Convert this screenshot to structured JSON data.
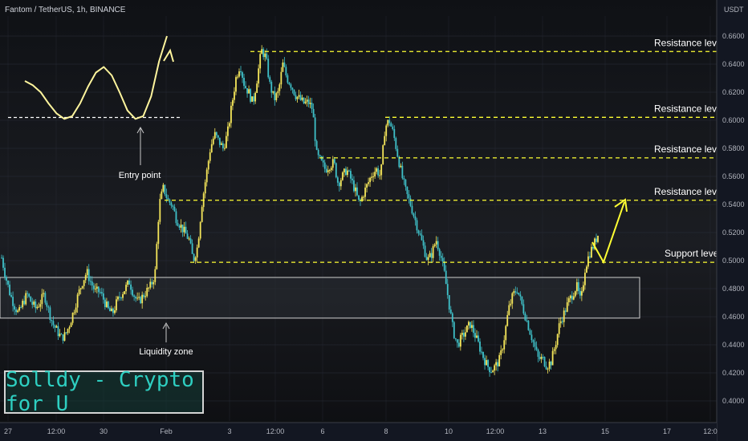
{
  "header": {
    "title": "Fantom / TetherUS, 1h, BINANCE",
    "currency": "USDT"
  },
  "brand": {
    "text": "Solldy - Crypto for U"
  },
  "colors": {
    "up": "#f5e65a",
    "down": "#3fc1c9",
    "dashed": "#ffff33",
    "badge": "#ffff00",
    "zone": "#2a2d33"
  },
  "chart_data": {
    "type": "candlestick",
    "pair": "FTM/USDT",
    "timeframe": "1h",
    "exchange": "BINANCE",
    "y_ticks": [
      "0.6600",
      "0.6400",
      "0.6200",
      "0.6000",
      "0.5800",
      "0.5600",
      "0.5400",
      "0.5200",
      "0.5000",
      "0.4800",
      "0.4600",
      "0.4400",
      "0.4200",
      "0.4000"
    ],
    "x_ticks": [
      "27",
      "12:00",
      "30",
      "Feb",
      "3",
      "12:00",
      "6",
      "8",
      "10",
      "12:00",
      "13",
      "15",
      "17",
      "12:0"
    ],
    "ylim": [
      0.393,
      0.671
    ],
    "levels": [
      {
        "label": "Resistance level",
        "value": "0.6490"
      },
      {
        "label": "Resistance level",
        "value": "0.6021"
      },
      {
        "label": "Resistance level",
        "value": "0.5732"
      },
      {
        "label": "Resistance level",
        "value": "0.5430"
      },
      {
        "label": "Support level",
        "value": "0.4988"
      }
    ],
    "current_price": "0.5185",
    "annotations": {
      "entry": "Entry point",
      "liquidity": "Liquidity zone",
      "liquidity_zone_range": [
        0.459,
        0.488
      ]
    },
    "price_path": [
      0.502,
      0.488,
      0.476,
      0.468,
      0.462,
      0.47,
      0.476,
      0.47,
      0.466,
      0.47,
      0.476,
      0.465,
      0.455,
      0.45,
      0.445,
      0.447,
      0.455,
      0.465,
      0.476,
      0.485,
      0.492,
      0.484,
      0.478,
      0.478,
      0.472,
      0.465,
      0.462,
      0.47,
      0.476,
      0.48,
      0.485,
      0.476,
      0.47,
      0.474,
      0.478,
      0.482,
      0.49,
      0.54,
      0.552,
      0.543,
      0.54,
      0.53,
      0.525,
      0.52,
      0.515,
      0.5,
      0.51,
      0.54,
      0.56,
      0.58,
      0.59,
      0.585,
      0.58,
      0.59,
      0.61,
      0.63,
      0.64,
      0.625,
      0.62,
      0.612,
      0.63,
      0.65,
      0.645,
      0.625,
      0.615,
      0.62,
      0.64,
      0.63,
      0.625,
      0.618,
      0.615,
      0.612,
      0.613,
      0.608,
      0.575,
      0.57,
      0.565,
      0.568,
      0.57,
      0.555,
      0.56,
      0.565,
      0.558,
      0.55,
      0.54,
      0.548,
      0.555,
      0.562,
      0.565,
      0.56,
      0.595,
      0.6,
      0.59,
      0.575,
      0.56,
      0.548,
      0.54,
      0.53,
      0.52,
      0.51,
      0.5,
      0.505,
      0.515,
      0.505,
      0.49,
      0.47,
      0.45,
      0.44,
      0.445,
      0.45,
      0.455,
      0.448,
      0.44,
      0.432,
      0.425,
      0.422,
      0.425,
      0.43,
      0.445,
      0.465,
      0.475,
      0.48,
      0.47,
      0.46,
      0.45,
      0.44,
      0.43,
      0.43,
      0.425,
      0.428,
      0.44,
      0.455,
      0.462,
      0.47,
      0.476,
      0.482,
      0.47,
      0.495,
      0.505,
      0.511,
      0.5185
    ],
    "wave_path": [
      0.628,
      0.625,
      0.62,
      0.612,
      0.605,
      0.601,
      0.603,
      0.612,
      0.624,
      0.634,
      0.638,
      0.632,
      0.62,
      0.607,
      0.601,
      0.603,
      0.617,
      0.642,
      0.66
    ]
  }
}
